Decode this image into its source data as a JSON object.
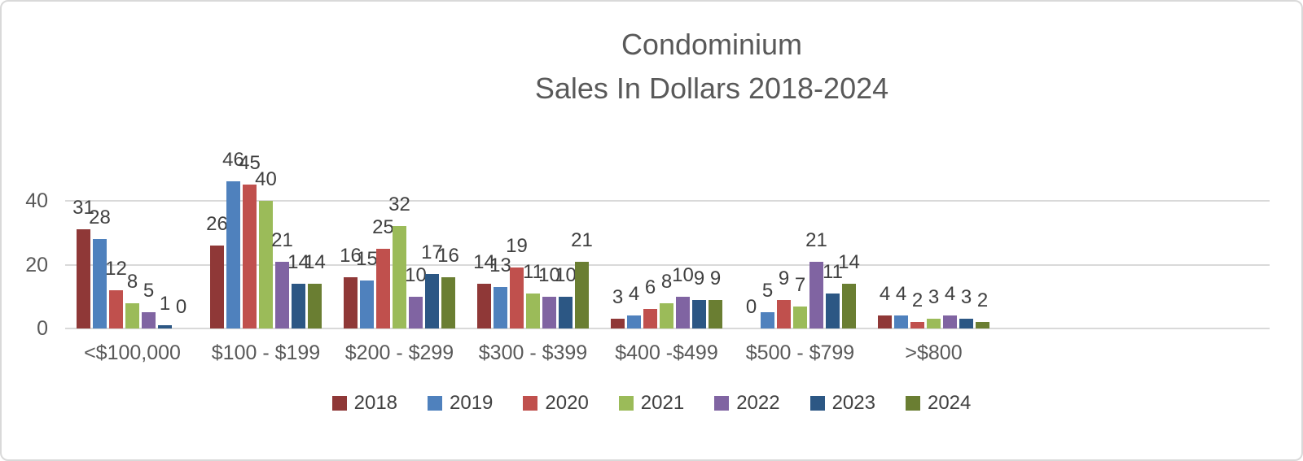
{
  "chart_data": {
    "type": "bar",
    "title": "Condominium Sales In Dollars 2018-2024",
    "title_lines": [
      "Condominium",
      "Sales In Dollars 2018-2024"
    ],
    "xlabel": "",
    "ylabel": "",
    "categories": [
      "<$100,000",
      "$100 - $199",
      "$200 - $299",
      "$300 - $399",
      "$400 -$499",
      "$500 - $799",
      ">$800"
    ],
    "series": [
      {
        "name": "2018",
        "color": "#8f3837",
        "values": [
          31,
          26,
          16,
          14,
          3,
          0,
          4
        ]
      },
      {
        "name": "2019",
        "color": "#4f81bd",
        "values": [
          28,
          46,
          15,
          13,
          4,
          5,
          4
        ]
      },
      {
        "name": "2020",
        "color": "#c0504d",
        "values": [
          12,
          45,
          25,
          19,
          6,
          9,
          2
        ]
      },
      {
        "name": "2021",
        "color": "#9bbb59",
        "values": [
          8,
          40,
          32,
          11,
          8,
          7,
          3
        ]
      },
      {
        "name": "2022",
        "color": "#8064a2",
        "values": [
          5,
          21,
          10,
          10,
          10,
          21,
          4
        ]
      },
      {
        "name": "2023",
        "color": "#2c5784",
        "values": [
          1,
          14,
          17,
          10,
          9,
          11,
          3
        ]
      },
      {
        "name": "2024",
        "color": "#6a7e32",
        "values": [
          0,
          14,
          16,
          21,
          9,
          14,
          2
        ]
      }
    ],
    "ylim": [
      0,
      40
    ],
    "y_ticks": [
      0,
      20,
      40
    ],
    "grid": true,
    "data_labels": true,
    "legend_position": "bottom"
  },
  "colors": {
    "title_text": "#595959",
    "axis_text": "#595959",
    "data_label_text": "#404040",
    "gridline": "#d9d9d9",
    "frame_border": "#d9d9d9",
    "background": "#ffffff"
  }
}
